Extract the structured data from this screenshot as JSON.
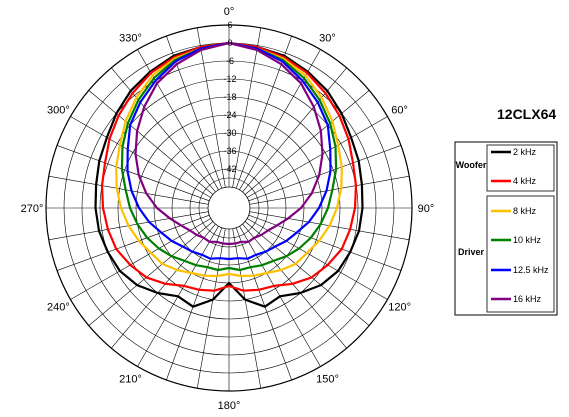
{
  "chart_data": {
    "type": "polar-line",
    "title": "12CLX64",
    "angle_ticks": [
      "0°",
      "30°",
      "60°",
      "90°",
      "120°",
      "150°",
      "180°",
      "210°",
      "240°",
      "270°",
      "300°",
      "330°"
    ],
    "radial_ticks": [
      "6",
      "0",
      "-6",
      "-12",
      "-18",
      "-24",
      "-30",
      "-36",
      "-42"
    ],
    "r_range": [
      -48,
      6
    ],
    "angle_step_deg": 10,
    "groups": [
      {
        "label": "Woofer",
        "series": [
          0,
          1
        ]
      },
      {
        "label": "Driver",
        "series": [
          2,
          3,
          4,
          5
        ]
      }
    ],
    "series": [
      {
        "name": "2 kHz",
        "color": "#000000",
        "angles": [
          0,
          10,
          20,
          30,
          40,
          50,
          60,
          70,
          80,
          90,
          100,
          110,
          120,
          130,
          140,
          150,
          160,
          170,
          180
        ],
        "values": [
          0,
          -0.5,
          -1,
          -2.5,
          -4,
          -6,
          -8,
          -9,
          -10,
          -10.5,
          -11,
          -12,
          -13,
          -15,
          -18,
          -21,
          -20,
          -24,
          -30
        ]
      },
      {
        "name": "4 kHz",
        "color": "#ff0000",
        "angles": [
          0,
          10,
          20,
          30,
          40,
          50,
          60,
          70,
          80,
          90,
          100,
          110,
          120,
          130,
          140,
          150,
          160,
          170,
          180
        ],
        "values": [
          0,
          -0.5,
          -1.5,
          -3,
          -5,
          -7,
          -9,
          -11,
          -12,
          -13,
          -14,
          -15,
          -17,
          -19,
          -22,
          -25,
          -26,
          -27,
          -29
        ]
      },
      {
        "name": "8 kHz",
        "color": "#ffc000",
        "angles": [
          0,
          10,
          20,
          30,
          40,
          50,
          60,
          70,
          80,
          90,
          100,
          110,
          120,
          130,
          140,
          150,
          160,
          170,
          180
        ],
        "values": [
          0,
          -1,
          -2,
          -4,
          -7,
          -10,
          -13,
          -15,
          -17,
          -19,
          -21,
          -23,
          -25,
          -26,
          -28,
          -30,
          -31,
          -32,
          -33
        ]
      },
      {
        "name": "10 kHz",
        "color": "#008000",
        "angles": [
          0,
          10,
          20,
          30,
          40,
          50,
          60,
          70,
          80,
          90,
          100,
          110,
          120,
          130,
          140,
          150,
          160,
          170,
          180
        ],
        "values": [
          0,
          -1,
          -2.5,
          -5,
          -8,
          -11,
          -14,
          -17,
          -20,
          -22,
          -24,
          -26,
          -28,
          -30,
          -32,
          -33,
          -34,
          -34,
          -35
        ]
      },
      {
        "name": "12.5 kHz",
        "color": "#0000ff",
        "angles": [
          0,
          10,
          20,
          30,
          40,
          50,
          60,
          70,
          80,
          90,
          100,
          110,
          120,
          130,
          140,
          150,
          160,
          170,
          180
        ],
        "values": [
          0,
          -1,
          -3,
          -6,
          -9,
          -12,
          -16,
          -19,
          -22,
          -25,
          -28,
          -31,
          -33,
          -35,
          -36,
          -37,
          -37,
          -38,
          -38
        ]
      },
      {
        "name": "16 kHz",
        "color": "#800080",
        "angles": [
          0,
          10,
          20,
          30,
          40,
          50,
          60,
          70,
          80,
          90,
          100,
          110,
          120,
          130,
          140,
          150,
          160,
          170,
          180
        ],
        "values": [
          0,
          -1.5,
          -4,
          -7,
          -11,
          -15,
          -19,
          -23,
          -27,
          -31,
          -35,
          -38,
          -40,
          -41,
          -42,
          -42,
          -43,
          -43,
          -43
        ]
      }
    ],
    "grid": true
  }
}
